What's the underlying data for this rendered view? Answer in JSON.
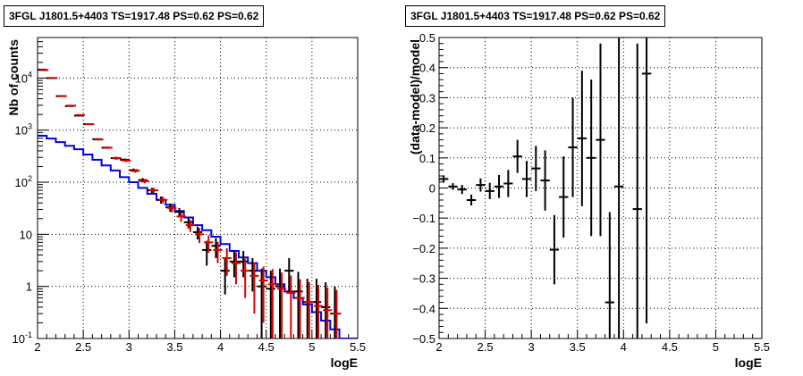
{
  "panels": [
    {
      "title": "3FGL J1801.5+4403 TS=1917.48 PS=0.62 PS=0.62"
    },
    {
      "title": "3FGL J1801.5+4403 TS=1917.48 PS=0.62 PS=0.62"
    }
  ],
  "colors": {
    "data": "#000000",
    "model": "#dd0000",
    "model_line": "#0000ee",
    "grid": "#000000"
  },
  "chart_data": [
    {
      "type": "line",
      "xlabel": "logE",
      "ylabel": "Nb of counts",
      "xlim": [
        2,
        5.5
      ],
      "ylim": [
        0.1,
        60000
      ],
      "yscale": "log",
      "grid": true,
      "x_ticks": [
        "2",
        "2.5",
        "3",
        "3.5",
        "4",
        "4.5",
        "5",
        "5.5"
      ],
      "y_ticks": [
        {
          "value": 0.1,
          "label": "10",
          "sup": "-1"
        },
        {
          "value": 1,
          "label": "1",
          "sup": ""
        },
        {
          "value": 10,
          "label": "10",
          "sup": ""
        },
        {
          "value": 100,
          "label": "10",
          "sup": "2"
        },
        {
          "value": 1000,
          "label": "10",
          "sup": "3"
        },
        {
          "value": 10000,
          "label": "10",
          "sup": "4"
        }
      ],
      "bin_edges": [
        2.0,
        2.1,
        2.2,
        2.3,
        2.4,
        2.5,
        2.6,
        2.7,
        2.8,
        2.9,
        3.0,
        3.1,
        3.2,
        3.3,
        3.4,
        3.5,
        3.6,
        3.7,
        3.8,
        3.9,
        4.0,
        4.1,
        4.2,
        4.3,
        4.4,
        4.5,
        4.6,
        4.7,
        4.8,
        4.9,
        5.0,
        5.1,
        5.2,
        5.3,
        5.4,
        5.5
      ],
      "series": [
        {
          "role": "data",
          "x": [
            2.05,
            2.15,
            2.25,
            2.35,
            2.45,
            2.55,
            2.65,
            2.75,
            2.85,
            2.95,
            3.05,
            3.15,
            3.25,
            3.35,
            3.45,
            3.55,
            3.65,
            3.75,
            3.85,
            3.95,
            4.05,
            4.15,
            4.25,
            4.35,
            4.45,
            4.55,
            4.65,
            4.75,
            4.85,
            4.95,
            5.05,
            5.15,
            5.25
          ],
          "y": [
            14500,
            10000,
            4500,
            2900,
            1900,
            1300,
            670,
            460,
            290,
            270,
            170,
            110,
            70,
            46,
            33,
            27,
            17,
            11,
            5,
            6,
            2,
            3,
            3,
            2,
            1,
            0.9,
            1,
            2,
            0.8,
            0.5,
            0.5,
            0.4,
            0.3
          ],
          "err_lo": [
            120,
            100,
            70,
            55,
            45,
            36,
            26,
            22,
            17,
            16,
            13,
            10,
            8,
            7,
            6,
            5,
            4,
            3,
            2.5,
            2.5,
            1.3,
            1.5,
            1.5,
            1.2,
            0.9,
            0.8,
            0.9,
            1.2,
            0.7,
            0.45,
            0.45,
            0.35,
            0.25
          ],
          "err_hi": [
            120,
            100,
            70,
            55,
            45,
            36,
            26,
            22,
            17,
            16,
            13,
            10,
            8,
            7,
            6,
            5,
            4,
            3,
            2.5,
            2.5,
            1.5,
            1.8,
            1.8,
            1.5,
            1.2,
            1.1,
            1.2,
            1.5,
            1.1,
            0.9,
            0.9,
            0.8,
            0.7
          ]
        },
        {
          "role": "model",
          "x": [
            2.05,
            2.15,
            2.25,
            2.35,
            2.45,
            2.55,
            2.65,
            2.75,
            2.85,
            2.95,
            3.05,
            3.15,
            3.25,
            3.35,
            3.45,
            3.55,
            3.65,
            3.75,
            3.85,
            3.95,
            4.05,
            4.15,
            4.25,
            4.35,
            4.45,
            4.55,
            4.65,
            4.75,
            4.85,
            4.95,
            5.05,
            5.15,
            5.25
          ],
          "y": [
            14200,
            10000,
            4500,
            2950,
            1950,
            1300,
            660,
            460,
            290,
            260,
            165,
            105,
            70,
            46,
            32,
            22,
            15,
            10,
            7,
            5,
            3.5,
            2.8,
            2.0,
            1.6,
            1.3,
            1.1,
            0.9,
            0.75,
            0.6,
            0.5,
            0.42,
            0.35,
            0.3
          ],
          "err": [
            120,
            100,
            67,
            54,
            44,
            36,
            26,
            21,
            17,
            16,
            13,
            10,
            8.4,
            6.8,
            5.7,
            4.7,
            3.9,
            3.2,
            2.6,
            2.2,
            1.9,
            1.7,
            1.4,
            1.3,
            1.1,
            1.05,
            0.95,
            0.87,
            0.77,
            0.71,
            0.65,
            0.59,
            0.55
          ]
        },
        {
          "role": "model_line",
          "y": [
            780,
            690,
            590,
            500,
            430,
            340,
            270,
            210,
            168,
            125,
            100,
            78,
            60,
            46,
            37,
            28,
            21,
            15,
            12,
            9,
            6.5,
            4.8,
            3.6,
            2.8,
            2.0,
            1.5,
            1.1,
            0.8,
            0.6,
            0.45,
            0.32,
            0.22,
            0.15,
            0.1,
            0.08
          ]
        }
      ]
    },
    {
      "type": "scatter",
      "xlabel": "logE",
      "ylabel": "(data-model)/model",
      "xlim": [
        2,
        5.5
      ],
      "ylim": [
        -0.5,
        0.5
      ],
      "grid": true,
      "x_ticks": [
        "2",
        "2.5",
        "3",
        "3.5",
        "4",
        "4.5",
        "5",
        "5.5"
      ],
      "y_ticks": [
        "-0.5",
        "-0.4",
        "-0.3",
        "-0.2",
        "-0.1",
        "0",
        "0.1",
        "0.2",
        "0.3",
        "0.4",
        "0.5"
      ],
      "x": [
        2.05,
        2.15,
        2.25,
        2.35,
        2.45,
        2.55,
        2.65,
        2.75,
        2.85,
        2.95,
        3.05,
        3.15,
        3.25,
        3.35,
        3.45,
        3.55,
        3.65,
        3.75,
        3.85,
        3.95,
        4.15,
        4.25
      ],
      "y": [
        0.03,
        0.005,
        -0.005,
        -0.04,
        0.01,
        -0.01,
        0.005,
        0.015,
        0.105,
        0.03,
        0.065,
        0.025,
        -0.205,
        -0.03,
        0.135,
        0.165,
        0.1,
        0.16,
        -0.38,
        0.005,
        -0.07,
        0.38
      ],
      "err": [
        0.012,
        0.011,
        0.015,
        0.018,
        0.022,
        0.027,
        0.038,
        0.045,
        0.055,
        0.06,
        0.075,
        0.1,
        0.115,
        0.135,
        0.165,
        0.225,
        0.26,
        0.32,
        0.3,
        0.55,
        0.55,
        0.83
      ]
    }
  ]
}
